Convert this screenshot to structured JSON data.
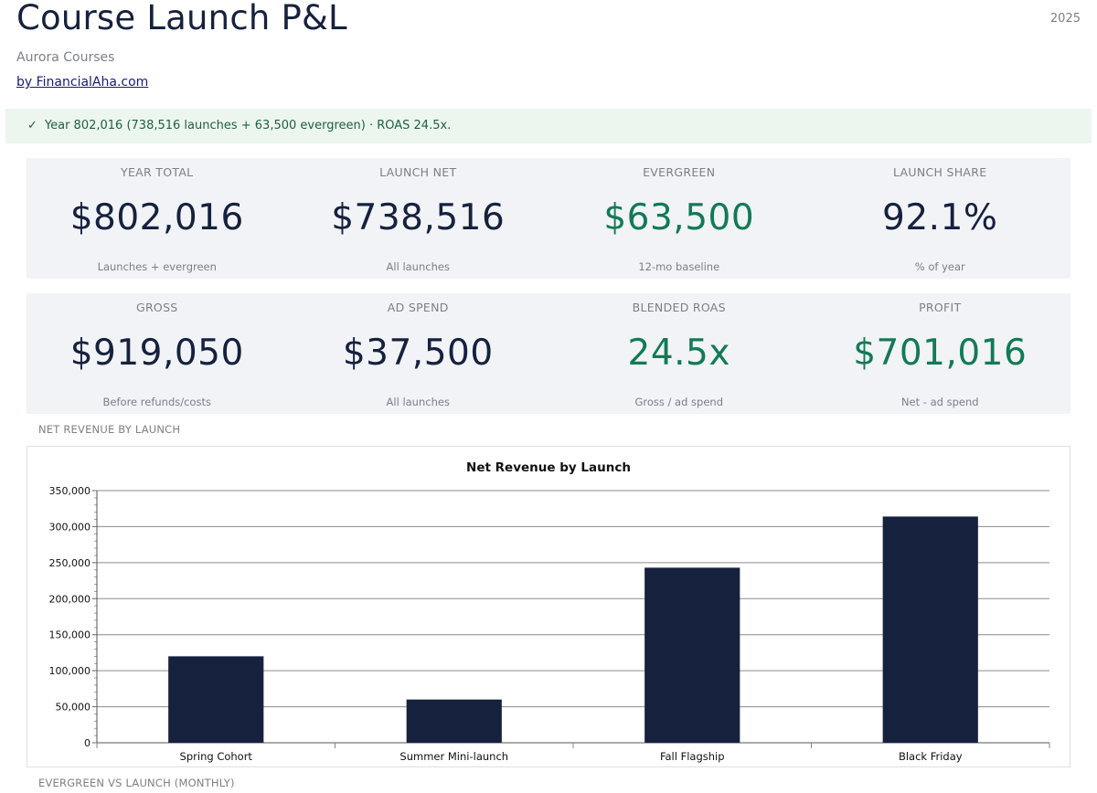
{
  "header": {
    "title": "Course Launch P&L",
    "year": "2025",
    "subtitle": "Aurora Courses",
    "byline": "by FinancialAha.com"
  },
  "banner": {
    "icon": "check-icon",
    "check": "✓",
    "text": "Year 802,016 (738,516 launches + 63,500 evergreen) · ROAS 24.5x."
  },
  "kpis_row1": [
    {
      "label": "YEAR TOTAL",
      "value": "$802,016",
      "sub": "Launches + evergreen",
      "color": "#16213e"
    },
    {
      "label": "LAUNCH NET",
      "value": "$738,516",
      "sub": "All launches",
      "color": "#16213e"
    },
    {
      "label": "EVERGREEN",
      "value": "$63,500",
      "sub": "12-mo baseline",
      "color": "#127a55"
    },
    {
      "label": "LAUNCH SHARE",
      "value": "92.1%",
      "sub": "% of year",
      "color": "#16213e"
    }
  ],
  "kpis_row2": [
    {
      "label": "GROSS",
      "value": "$919,050",
      "sub": "Before refunds/costs",
      "color": "#16213e"
    },
    {
      "label": "AD SPEND",
      "value": "$37,500",
      "sub": "All launches",
      "color": "#16213e"
    },
    {
      "label": "BLENDED ROAS",
      "value": "24.5x",
      "sub": "Gross / ad spend",
      "color": "#127a55"
    },
    {
      "label": "PROFIT",
      "value": "$701,016",
      "sub": "Net - ad spend",
      "color": "#127a55"
    }
  ],
  "sections": {
    "net_revenue_label": "NET REVENUE BY LAUNCH",
    "evergreen_label": "EVERGREEN VS LAUNCH (MONTHLY)"
  },
  "chart_data": {
    "type": "bar",
    "title": "Net Revenue by Launch",
    "xlabel": "",
    "ylabel": "",
    "categories": [
      "Spring Cohort",
      "Summer Mini-launch",
      "Fall Flagship",
      "Black Friday"
    ],
    "values": [
      120000,
      60000,
      243000,
      314000
    ],
    "ylim": [
      0,
      350000
    ],
    "yticks": [
      0,
      50000,
      100000,
      150000,
      200000,
      250000,
      300000,
      350000
    ],
    "ytick_labels": [
      "0",
      "50,000",
      "100,000",
      "150,000",
      "200,000",
      "250,000",
      "300,000",
      "350,000"
    ],
    "grid": true,
    "bar_color": "#16213e"
  }
}
